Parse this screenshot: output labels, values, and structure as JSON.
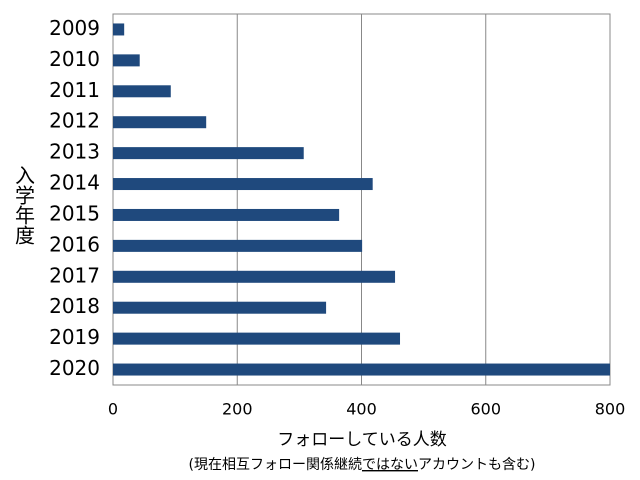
{
  "chart_data": {
    "type": "barh",
    "ylabel": "入学年度",
    "xlabel": "フォローしている人数",
    "xlabel_note": [
      "(現在相互フォロー関係継続",
      "ではない",
      "アカウントも含む)"
    ],
    "categories": [
      "2009",
      "2010",
      "2011",
      "2012",
      "2013",
      "2014",
      "2015",
      "2016",
      "2017",
      "2018",
      "2019",
      "2020"
    ],
    "values": [
      18,
      43,
      93,
      150,
      307,
      418,
      364,
      401,
      454,
      343,
      462,
      800
    ],
    "color": "#1f497d",
    "xlim": [
      0,
      800
    ],
    "xticks": [
      0,
      200,
      400,
      600,
      800
    ],
    "grid": true
  }
}
